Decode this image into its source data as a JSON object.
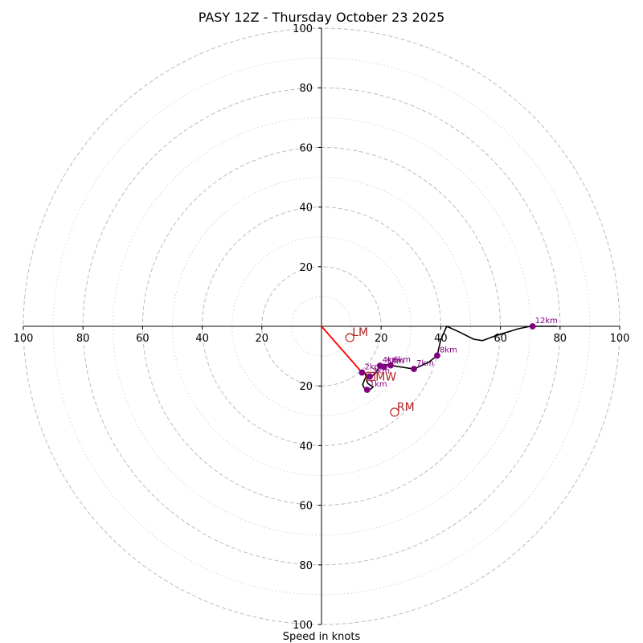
{
  "chart_data": {
    "type": "hodograph",
    "title": "PASY 12Z - Thursday October 23 2025",
    "xlabel": "Speed in knots",
    "units": "knots",
    "range": [
      -100,
      100
    ],
    "major_rings": [
      20,
      40,
      60,
      80,
      100
    ],
    "minor_rings": [
      10,
      30,
      50,
      70,
      90
    ],
    "tick_values": [
      20,
      40,
      60,
      80,
      100
    ],
    "tick_labels": [
      "20",
      "40",
      "60",
      "80",
      "100"
    ],
    "colors": {
      "trace": "#000000",
      "height_marker": "#800080",
      "storm_motion": "#b22222",
      "shear_vector": "#ff0000",
      "ring": "#bbbbbb",
      "axis": "#000000"
    },
    "trace": [
      {
        "u": 14.5,
        "v": -15.5
      },
      {
        "u": 15,
        "v": -16.8
      },
      {
        "u": 14.4,
        "v": -18
      },
      {
        "u": 13.8,
        "v": -19.5
      },
      {
        "u": 14.2,
        "v": -20.5
      },
      {
        "u": 15.3,
        "v": -21.3
      },
      {
        "u": 16.6,
        "v": -21
      },
      {
        "u": 17.3,
        "v": -20.3
      },
      {
        "u": 16.4,
        "v": -19.8
      },
      {
        "u": 15.6,
        "v": -19.2
      },
      {
        "u": 15.1,
        "v": -18.2
      },
      {
        "u": 15.5,
        "v": -17.2
      },
      {
        "u": 16.8,
        "v": -16.8
      },
      {
        "u": 18.2,
        "v": -15.6
      },
      {
        "u": 19.6,
        "v": -13.2
      },
      {
        "u": 21,
        "v": -12.8
      },
      {
        "u": 23.2,
        "v": -13.1
      },
      {
        "u": 31,
        "v": -14.3
      },
      {
        "u": 36,
        "v": -12
      },
      {
        "u": 38.8,
        "v": -9.8
      },
      {
        "u": 40,
        "v": -4.5
      },
      {
        "u": 42,
        "v": 0
      },
      {
        "u": 46,
        "v": -1.8
      },
      {
        "u": 51,
        "v": -4.3
      },
      {
        "u": 54,
        "v": -4.8
      },
      {
        "u": 58,
        "v": -3.3
      },
      {
        "u": 66,
        "v": -0.8
      },
      {
        "u": 70,
        "v": 0
      },
      {
        "u": 79,
        "v": 0
      }
    ],
    "height_markers": [
      {
        "label": "1km",
        "u": 15.3,
        "v": -21.3
      },
      {
        "label": "2km",
        "u": 13.6,
        "v": -15.5
      },
      {
        "label": "3km",
        "u": 16.2,
        "v": -16.8
      },
      {
        "label": "4km",
        "u": 19.6,
        "v": -13.2
      },
      {
        "label": "5km",
        "u": 21,
        "v": -13.6
      },
      {
        "label": "6km",
        "u": 23.2,
        "v": -13.1
      },
      {
        "label": "7km",
        "u": 31,
        "v": -14.3
      },
      {
        "label": "8km",
        "u": 38.8,
        "v": -9.8
      },
      {
        "label": "12km",
        "u": 70.8,
        "v": 0
      }
    ],
    "storm_motion": [
      {
        "label": "LM",
        "u": 9.5,
        "v": -3.8
      },
      {
        "label": "RM",
        "u": 24.5,
        "v": -28.8
      },
      {
        "label": "MW",
        "u": 16.5,
        "v": -16.8
      }
    ],
    "shear_vector": {
      "from": {
        "u": 0,
        "v": 0
      },
      "to": {
        "u": 13.6,
        "v": -15.5
      }
    }
  }
}
